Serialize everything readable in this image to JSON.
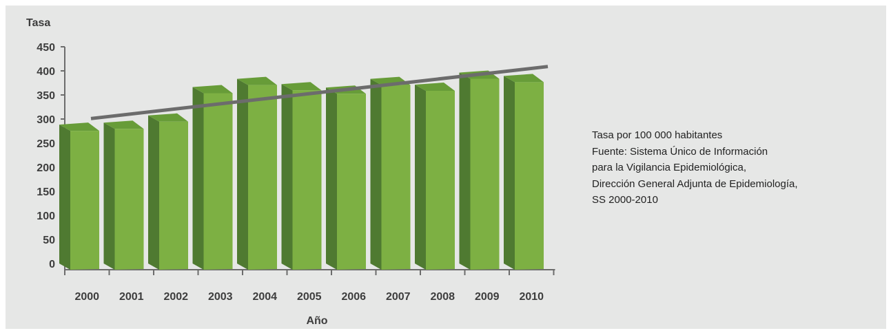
{
  "chart_data": {
    "type": "bar",
    "title": "",
    "ylabel": "Tasa",
    "xlabel": "Año",
    "categories": [
      "2000",
      "2001",
      "2002",
      "2003",
      "2004",
      "2005",
      "2006",
      "2007",
      "2008",
      "2009",
      "2010"
    ],
    "values": [
      282,
      286,
      301,
      360,
      377,
      366,
      359,
      377,
      365,
      390,
      383
    ],
    "ylim": [
      0,
      450
    ],
    "yticks": [
      0,
      50,
      100,
      150,
      200,
      250,
      300,
      350,
      400,
      450
    ],
    "trendline": {
      "start": 301,
      "end": 409
    },
    "grid": false,
    "colors": {
      "bar_front": "#7db043",
      "bar_side": "#4f7a31",
      "bar_top": "#679c38",
      "trendline": "#6c6c6c",
      "background": "#e6e7e6"
    }
  },
  "notes": [
    "Tasa por 100 000 habitantes",
    "Fuente: Sistema Único de Información",
    "para la Vigilancia Epidemiológica,",
    "Dirección General Adjunta de Epidemiología,",
    "SS 2000-2010"
  ]
}
